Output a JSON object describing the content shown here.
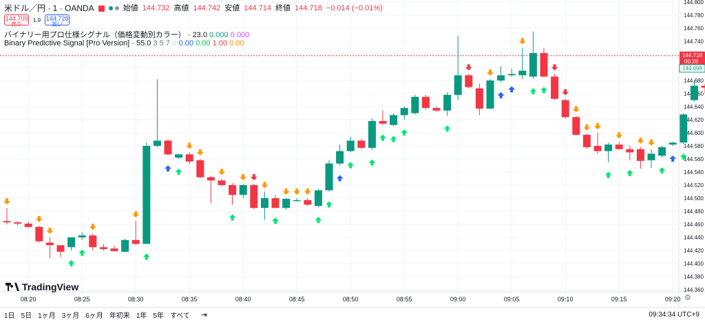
{
  "header": {
    "symbol": "米ドル／円 · 1 · OANDA",
    "open_label": "始値",
    "open": "144.732",
    "high_label": "高値",
    "high": "144.742",
    "low_label": "安値",
    "low": "144.714",
    "close_label": "終値",
    "close": "144.718",
    "change": "−0.014 (−0.01%)"
  },
  "trade": {
    "sell_price": "144.709",
    "sell_label": "売り",
    "spread": "1.9",
    "buy_price": "144.728",
    "buy_label": "買い"
  },
  "indicators": [
    {
      "name": "バイナリー用プロ仕様シグナル（価格変動別カラー）",
      "value": "23.0",
      "values": [
        "0.000",
        "0.000"
      ]
    },
    {
      "name": "Binary Predictive Signal [Pro Version]",
      "value": "55.0",
      "params": "3 5 7",
      "values": [
        "0.00",
        "0.00",
        "1.00",
        "0.00"
      ]
    }
  ],
  "logo_text": "TradingView",
  "price_tags": {
    "current": "144.718",
    "countdown": "00:26",
    "other": "144.698"
  },
  "bottom": {
    "ranges": [
      "1日",
      "5日",
      "1ヶ月",
      "3ヶ月",
      "6ヶ月",
      "年初来",
      "1年",
      "5年",
      "すべて"
    ],
    "clock": "09:34:34 UTC+9"
  },
  "colors": {
    "up": "#089981",
    "down": "#f23645",
    "arrow_up_green": "#00e676",
    "arrow_up_blue": "#2962ff",
    "arrow_down_orange": "#ff9800",
    "arrow_down_red": "#f23645"
  },
  "chart_data": {
    "type": "candlestick",
    "ylim": [
      144.36,
      144.8
    ],
    "y_ticks": [
      "144.800",
      "144.780",
      "144.760",
      "144.740",
      "144.720",
      "144.700",
      "144.680",
      "144.660",
      "144.640",
      "144.620",
      "144.600",
      "144.580",
      "144.560",
      "144.540",
      "144.520",
      "144.500",
      "144.480",
      "144.460",
      "144.440",
      "144.420",
      "144.400",
      "144.380",
      "144.360"
    ],
    "x_ticks": [
      "08:20",
      "08:25",
      "08:30",
      "08:35",
      "08:40",
      "08:45",
      "08:50",
      "08:55",
      "09:00",
      "09:05",
      "09:10",
      "09:15",
      "09:20"
    ],
    "x_tick_index": [
      2,
      7,
      12,
      17,
      22,
      27,
      32,
      37,
      42,
      47,
      52,
      57,
      62
    ],
    "current_price": 144.718,
    "candles": [
      {
        "o": 144.465,
        "h": 144.485,
        "l": 144.46,
        "c": 144.463,
        "sig": "down_orange"
      },
      {
        "o": 144.463,
        "h": 144.465,
        "l": 144.458,
        "c": 144.461
      },
      {
        "o": 144.461,
        "h": 144.464,
        "l": 144.455,
        "c": 144.456
      },
      {
        "o": 144.456,
        "h": 144.458,
        "l": 144.432,
        "c": 144.434,
        "sig": "down_orange"
      },
      {
        "o": 144.432,
        "h": 144.44,
        "l": 144.408,
        "c": 144.428,
        "sig": "down_orange"
      },
      {
        "o": 144.428,
        "h": 144.428,
        "l": 144.41,
        "c": 144.418
      },
      {
        "o": 144.425,
        "h": 144.44,
        "l": 144.42,
        "c": 144.44,
        "sig": "up_green"
      },
      {
        "o": 144.44,
        "h": 144.448,
        "l": 144.436,
        "c": 144.443,
        "sig": "up_green"
      },
      {
        "o": 144.443,
        "h": 144.446,
        "l": 144.42,
        "c": 144.425,
        "sig": "down_orange"
      },
      {
        "o": 144.425,
        "h": 144.43,
        "l": 144.42,
        "c": 144.422
      },
      {
        "o": 144.423,
        "h": 144.427,
        "l": 144.418,
        "c": 144.419
      },
      {
        "o": 144.418,
        "h": 144.438,
        "l": 144.417,
        "c": 144.436
      },
      {
        "o": 144.436,
        "h": 144.465,
        "l": 144.428,
        "c": 144.43,
        "sig": "down_orange"
      },
      {
        "o": 144.43,
        "h": 144.585,
        "l": 144.43,
        "c": 144.58,
        "sig": "up_green"
      },
      {
        "o": 144.58,
        "h": 144.682,
        "l": 144.578,
        "c": 144.588
      },
      {
        "o": 144.588,
        "h": 144.59,
        "l": 144.565,
        "c": 144.567,
        "sig": "up_blue"
      },
      {
        "o": 144.562,
        "h": 144.568,
        "l": 144.56,
        "c": 144.567,
        "sig": "up_green"
      },
      {
        "o": 144.567,
        "h": 144.57,
        "l": 144.552,
        "c": 144.556,
        "sig": "down_orange"
      },
      {
        "o": 144.558,
        "h": 144.56,
        "l": 144.53,
        "c": 144.532,
        "sig": "down_orange"
      },
      {
        "o": 144.532,
        "h": 144.534,
        "l": 144.492,
        "c": 144.527
      },
      {
        "o": 144.527,
        "h": 144.53,
        "l": 144.518,
        "c": 144.52,
        "sig": "down_orange"
      },
      {
        "o": 144.52,
        "h": 144.523,
        "l": 144.49,
        "c": 144.505,
        "sig": "up_green"
      },
      {
        "o": 144.505,
        "h": 144.522,
        "l": 144.5,
        "c": 144.52,
        "sig": "down_orange"
      },
      {
        "o": 144.52,
        "h": 144.522,
        "l": 144.483,
        "c": 144.485,
        "sig": "down_red"
      },
      {
        "o": 144.485,
        "h": 144.51,
        "l": 144.467,
        "c": 144.5,
        "sig": "down_orange"
      },
      {
        "o": 144.5,
        "h": 144.505,
        "l": 144.485,
        "c": 144.485,
        "sig": "up_green"
      },
      {
        "o": 144.485,
        "h": 144.5,
        "l": 144.482,
        "c": 144.499,
        "sig": "down_orange"
      },
      {
        "o": 144.497,
        "h": 144.5,
        "l": 144.495,
        "c": 144.497,
        "sig": "down_orange"
      },
      {
        "o": 144.497,
        "h": 144.5,
        "l": 144.488,
        "c": 144.49,
        "sig": "down_orange"
      },
      {
        "o": 144.488,
        "h": 144.514,
        "l": 144.486,
        "c": 144.512,
        "sig": "up_green"
      },
      {
        "o": 144.512,
        "h": 144.558,
        "l": 144.51,
        "c": 144.553,
        "sig": "up_green"
      },
      {
        "o": 144.553,
        "h": 144.582,
        "l": 144.55,
        "c": 144.572,
        "sig": "up_blue"
      },
      {
        "o": 144.572,
        "h": 144.594,
        "l": 144.57,
        "c": 144.588,
        "sig": "up_green"
      },
      {
        "o": 144.588,
        "h": 144.59,
        "l": 144.575,
        "c": 144.577
      },
      {
        "o": 144.577,
        "h": 144.622,
        "l": 144.574,
        "c": 144.618,
        "sig": "up_green"
      },
      {
        "o": 144.618,
        "h": 144.634,
        "l": 144.612,
        "c": 144.614,
        "sig": "up_green"
      },
      {
        "o": 144.612,
        "h": 144.63,
        "l": 144.61,
        "c": 144.627,
        "sig": "up_green"
      },
      {
        "o": 144.627,
        "h": 144.64,
        "l": 144.62,
        "c": 144.638,
        "sig": "up_green"
      },
      {
        "o": 144.63,
        "h": 144.658,
        "l": 144.628,
        "c": 144.655
      },
      {
        "o": 144.655,
        "h": 144.658,
        "l": 144.635,
        "c": 144.638
      },
      {
        "o": 144.638,
        "h": 144.64,
        "l": 144.632,
        "c": 144.634
      },
      {
        "o": 144.634,
        "h": 144.662,
        "l": 144.626,
        "c": 144.658,
        "sig": "up_green"
      },
      {
        "o": 144.658,
        "h": 144.748,
        "l": 144.65,
        "c": 144.688
      },
      {
        "o": 144.688,
        "h": 144.69,
        "l": 144.668,
        "c": 144.67,
        "sig": "down_red"
      },
      {
        "o": 144.668,
        "h": 144.675,
        "l": 144.627,
        "c": 144.637
      },
      {
        "o": 144.637,
        "h": 144.682,
        "l": 144.636,
        "c": 144.68,
        "sig": "down_orange"
      },
      {
        "o": 144.68,
        "h": 144.702,
        "l": 144.677,
        "c": 144.688,
        "sig": "up_blue"
      },
      {
        "o": 144.688,
        "h": 144.698,
        "l": 144.686,
        "c": 144.69,
        "sig": "up_blue"
      },
      {
        "o": 144.688,
        "h": 144.73,
        "l": 144.682,
        "c": 144.695,
        "sig": "down_orange"
      },
      {
        "o": 144.686,
        "h": 144.755,
        "l": 144.683,
        "c": 144.722,
        "sig": "up_green"
      },
      {
        "o": 144.722,
        "h": 144.73,
        "l": 144.685,
        "c": 144.686,
        "sig": "up_green"
      },
      {
        "o": 144.686,
        "h": 144.69,
        "l": 144.65,
        "c": 144.652,
        "sig": "down_red"
      },
      {
        "o": 144.65,
        "h": 144.652,
        "l": 144.622,
        "c": 144.624,
        "sig": "down_red"
      },
      {
        "o": 144.624,
        "h": 144.626,
        "l": 144.595,
        "c": 144.597,
        "sig": "down_orange"
      },
      {
        "o": 144.597,
        "h": 144.598,
        "l": 144.575,
        "c": 144.578,
        "sig": "down_orange"
      },
      {
        "o": 144.58,
        "h": 144.6,
        "l": 144.568,
        "c": 144.572,
        "sig": "down_orange"
      },
      {
        "o": 144.572,
        "h": 144.585,
        "l": 144.555,
        "c": 144.582,
        "sig": "up_green"
      },
      {
        "o": 144.582,
        "h": 144.586,
        "l": 144.574,
        "c": 144.575,
        "sig": "down_orange"
      },
      {
        "o": 144.575,
        "h": 144.58,
        "l": 144.558,
        "c": 144.57,
        "sig": "up_green"
      },
      {
        "o": 144.575,
        "h": 144.578,
        "l": 144.545,
        "c": 144.557,
        "sig": "down_orange"
      },
      {
        "o": 144.558,
        "h": 144.575,
        "l": 144.546,
        "c": 144.568,
        "sig": "down_orange"
      },
      {
        "o": 144.565,
        "h": 144.58,
        "l": 144.562,
        "c": 144.578,
        "sig": "up_green"
      },
      {
        "o": 144.582,
        "h": 144.586,
        "l": 144.58,
        "c": 144.585,
        "sig": "up_blue"
      },
      {
        "o": 144.585,
        "h": 144.63,
        "l": 144.583,
        "c": 144.628,
        "sig": "up_green"
      },
      {
        "o": 144.65,
        "h": 144.68,
        "l": 144.648,
        "c": 144.672
      },
      {
        "o": 144.672,
        "h": 144.675,
        "l": 144.66,
        "c": 144.669
      },
      {
        "o": 144.68,
        "h": 144.7,
        "l": 144.678,
        "c": 144.698
      }
    ]
  }
}
